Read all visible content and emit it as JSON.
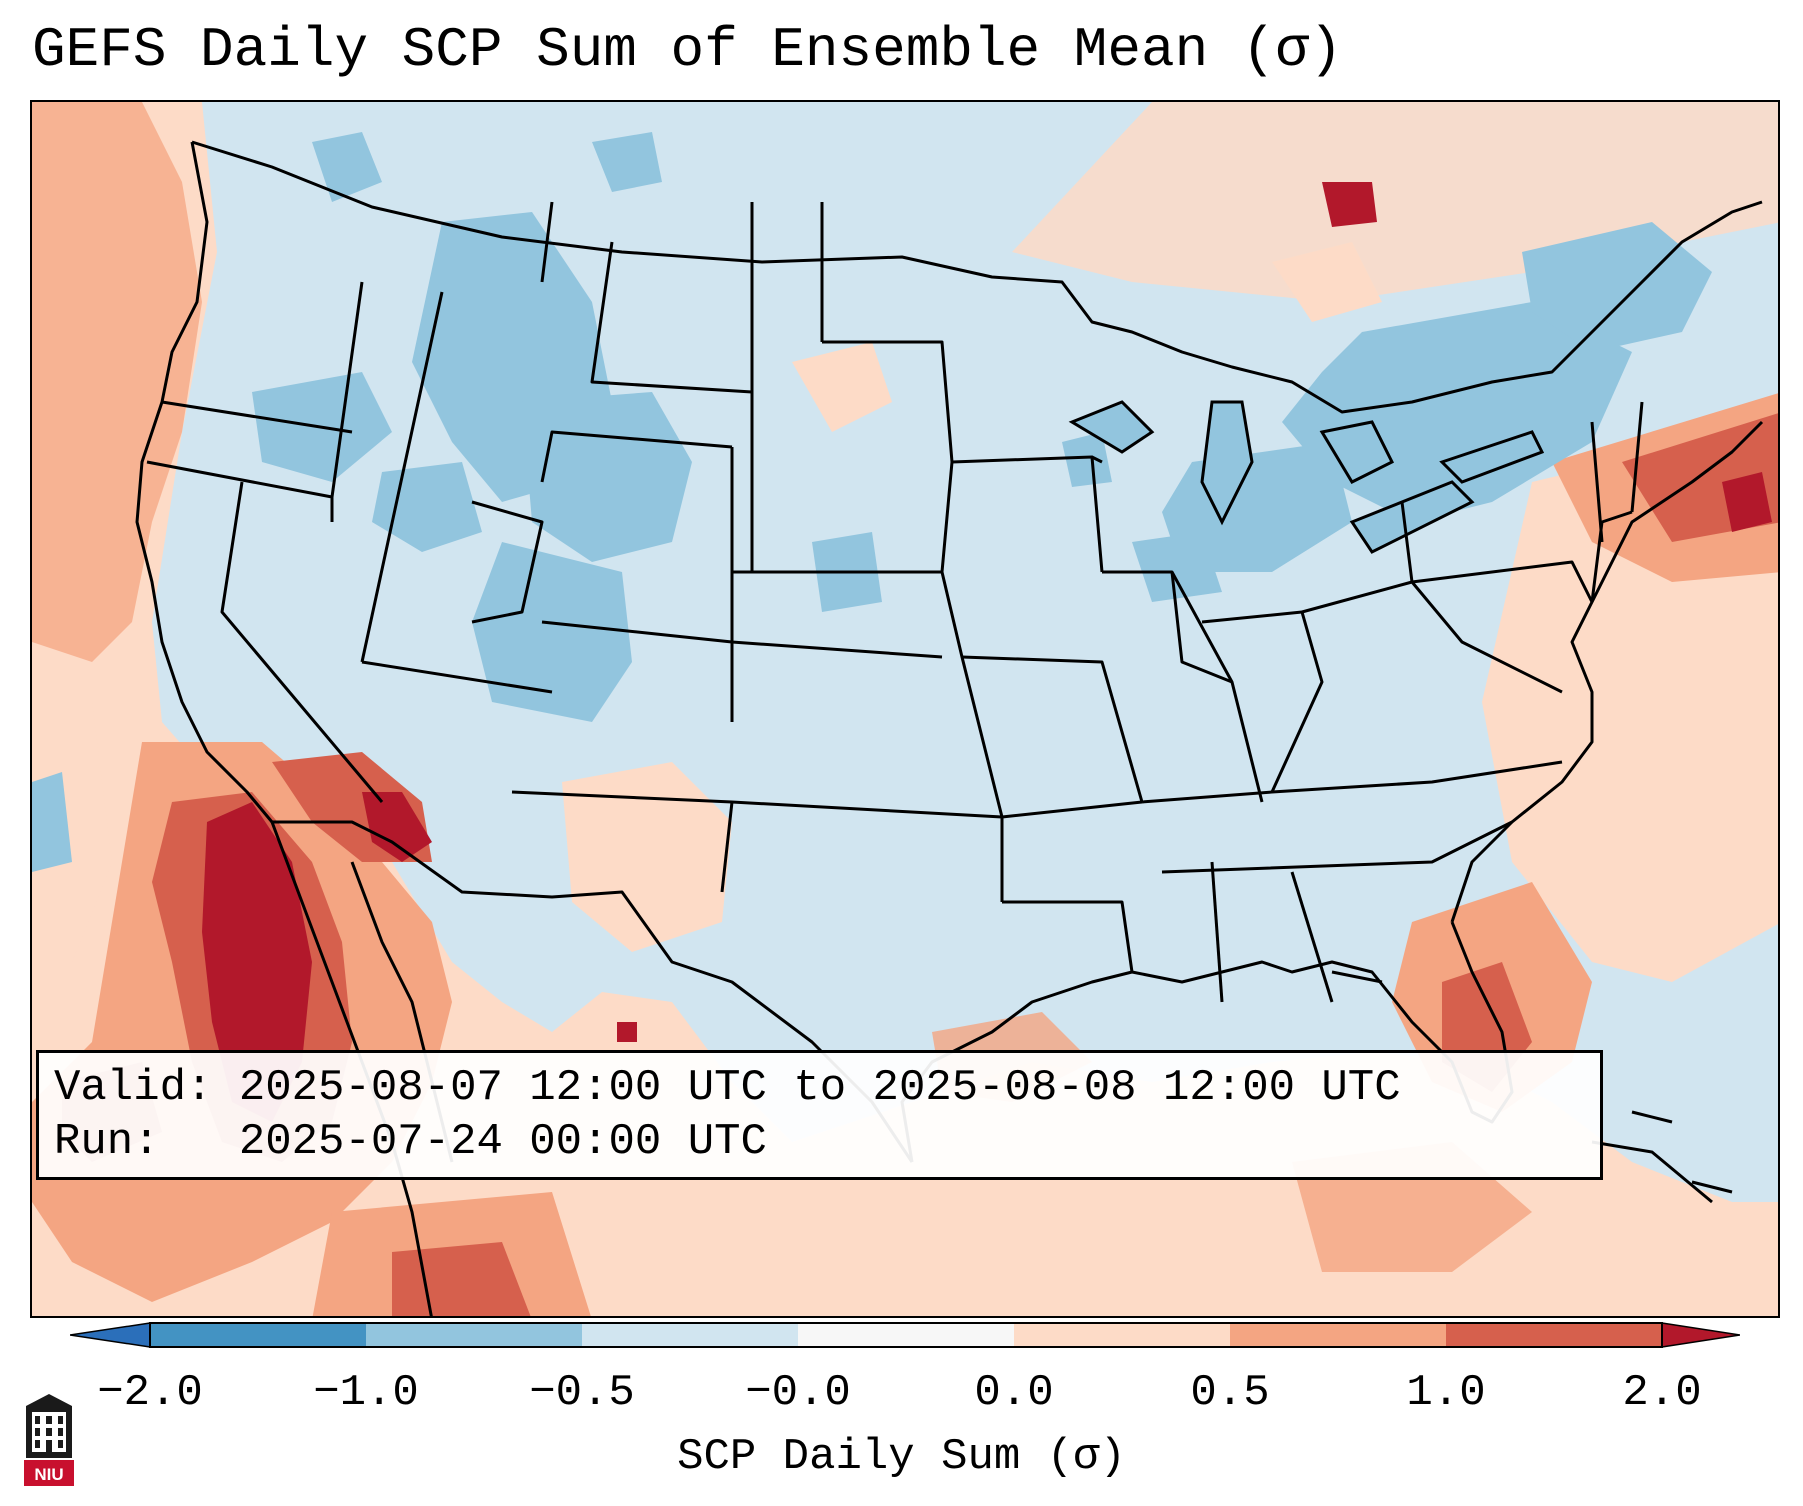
{
  "title": "GEFS Daily SCP Sum of Ensemble Mean (σ)",
  "info": {
    "valid_line": "Valid: 2025-08-07 12:00 UTC to 2025-08-08 12:00 UTC",
    "run_line": "Run:   2025-07-24 00:00 UTC"
  },
  "colorbar": {
    "label": "SCP Daily Sum (σ)",
    "ticks": [
      "−2.0",
      "−1.0",
      "−0.5",
      "−0.0",
      "0.0",
      "0.5",
      "1.0",
      "2.0"
    ],
    "bins": [
      {
        "range": "< -2.0",
        "color": "#2b6fba"
      },
      {
        "range": "-2.0 to -1.0",
        "color": "#4393c3"
      },
      {
        "range": "-1.0 to -0.5",
        "color": "#92c5de"
      },
      {
        "range": "-0.5 to -0.0",
        "color": "#d1e5f0"
      },
      {
        "range": "-0.0 to 0.0",
        "color": "#f7f7f7"
      },
      {
        "range": "0.0 to 0.5",
        "color": "#fddbc7"
      },
      {
        "range": "0.5 to 1.0",
        "color": "#f4a582"
      },
      {
        "range": "1.0 to 2.0",
        "color": "#d6604d"
      },
      {
        "range": "> 2.0",
        "color": "#b2182b"
      }
    ]
  },
  "logo": {
    "text": "NIU"
  },
  "icons": {
    "logo": "niu-building-icon"
  }
}
